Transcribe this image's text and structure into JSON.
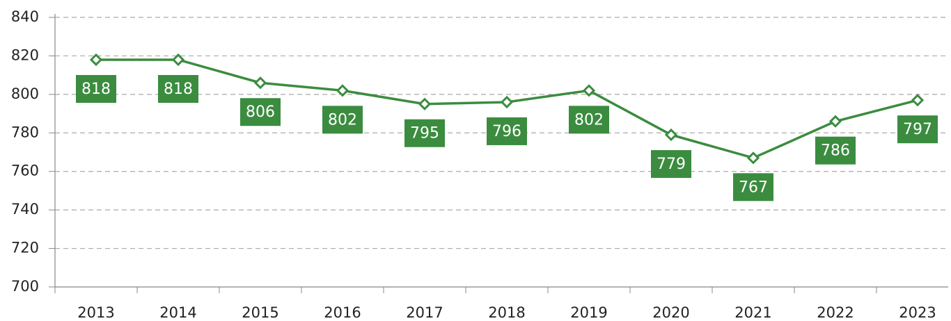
{
  "chart_data": {
    "type": "line",
    "categories": [
      "2013",
      "2014",
      "2015",
      "2016",
      "2017",
      "2018",
      "2019",
      "2020",
      "2021",
      "2022",
      "2023"
    ],
    "series": [
      {
        "name": null,
        "color": "#3b8c3f",
        "values": [
          818,
          818,
          806,
          802,
          795,
          796,
          802,
          779,
          767,
          786,
          797
        ]
      }
    ],
    "ylim": [
      700,
      840
    ],
    "yticks": [
      700,
      720,
      740,
      760,
      780,
      800,
      820,
      840
    ],
    "grid": true
  }
}
